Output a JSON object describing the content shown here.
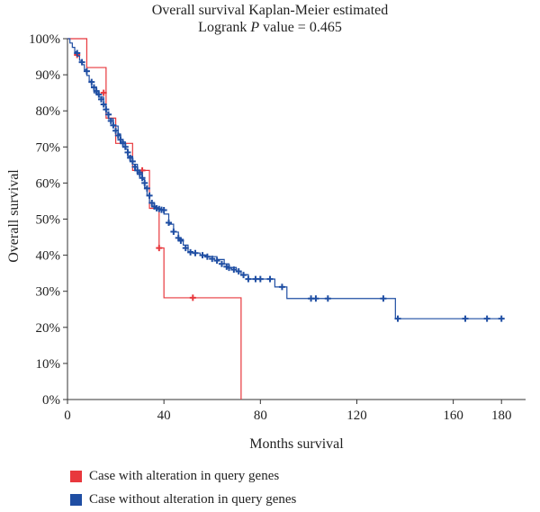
{
  "chart_data": {
    "type": "line",
    "title": "Overall survival Kaplan-Meier estimated",
    "subtitle_prefix": "Logrank ",
    "subtitle_italic": "P",
    "subtitle_suffix": " value = 0.465",
    "xlabel": "Months survival",
    "ylabel": "Overall survival",
    "xlim": [
      0,
      190
    ],
    "ylim": [
      0,
      100
    ],
    "xticks": [
      0,
      40,
      80,
      120,
      160,
      180
    ],
    "xtick_labels": [
      "0",
      "40",
      "80",
      "120",
      "160",
      "180"
    ],
    "yticks": [
      0,
      10,
      20,
      30,
      40,
      50,
      60,
      70,
      80,
      90,
      100
    ],
    "ytick_labels": [
      "0%",
      "10%",
      "20%",
      "30%",
      "40%",
      "50%",
      "60%",
      "70%",
      "80%",
      "90%",
      "100%"
    ],
    "grid": false,
    "legend_position": "bottom-left",
    "series": [
      {
        "name": "Case with alteration in query genes",
        "color": "#e8383d",
        "steps": [
          [
            0,
            100
          ],
          [
            8,
            95.5
          ],
          [
            8,
            92
          ],
          [
            16,
            85
          ],
          [
            16,
            78
          ],
          [
            20,
            71
          ],
          [
            27,
            71
          ],
          [
            27,
            63.5
          ],
          [
            34,
            63.5
          ],
          [
            34,
            53
          ],
          [
            38,
            53
          ],
          [
            38,
            42
          ],
          [
            40,
            42
          ],
          [
            40,
            28.2
          ],
          [
            72,
            28.2
          ],
          [
            72,
            0
          ]
        ],
        "censored": [
          [
            4,
            95.5
          ],
          [
            15,
            85
          ],
          [
            31,
            63.5
          ],
          [
            38,
            42
          ],
          [
            52,
            28.2
          ]
        ]
      },
      {
        "name": "Case without alteration in query genes",
        "color": "#1f4ea3",
        "steps": [
          [
            0,
            100
          ],
          [
            1,
            98.8
          ],
          [
            2,
            97.6
          ],
          [
            3,
            96.4
          ],
          [
            4,
            95.2
          ],
          [
            5,
            94
          ],
          [
            6,
            92.8
          ],
          [
            7,
            91.4
          ],
          [
            8,
            89.8
          ],
          [
            9,
            88.2
          ],
          [
            10,
            86.6
          ],
          [
            11,
            85
          ],
          [
            13,
            83.8
          ],
          [
            15,
            81.6
          ],
          [
            16,
            79.6
          ],
          [
            17,
            77.8
          ],
          [
            19,
            75.8
          ],
          [
            21,
            73.6
          ],
          [
            22,
            71.4
          ],
          [
            24,
            69.4
          ],
          [
            25,
            67.4
          ],
          [
            27,
            65.2
          ],
          [
            29,
            63
          ],
          [
            31,
            61
          ],
          [
            32,
            58.8
          ],
          [
            33,
            56.6
          ],
          [
            34,
            54.6
          ],
          [
            36,
            53.2
          ],
          [
            38,
            52.6
          ],
          [
            40,
            51.4
          ],
          [
            42,
            48.6
          ],
          [
            44,
            46.4
          ],
          [
            46,
            44.4
          ],
          [
            48,
            42.8
          ],
          [
            50,
            41
          ],
          [
            52,
            40.6
          ],
          [
            55,
            40
          ],
          [
            58,
            39.6
          ],
          [
            62,
            38.8
          ],
          [
            65,
            37.6
          ],
          [
            67,
            36.6
          ],
          [
            70,
            35.6
          ],
          [
            72,
            34.6
          ],
          [
            75,
            33.4
          ],
          [
            86,
            33.4
          ],
          [
            86,
            31.2
          ],
          [
            91,
            31.2
          ],
          [
            91,
            28
          ],
          [
            136,
            28
          ],
          [
            136,
            22.4
          ],
          [
            180,
            22.4
          ]
        ],
        "censored": [
          [
            4,
            96
          ],
          [
            6,
            93.5
          ],
          [
            8,
            91
          ],
          [
            10,
            88
          ],
          [
            11,
            86.5
          ],
          [
            12,
            85.5
          ],
          [
            13,
            84.5
          ],
          [
            14,
            83.2
          ],
          [
            15,
            81.8
          ],
          [
            16,
            80.4
          ],
          [
            17,
            79
          ],
          [
            18,
            77.2
          ],
          [
            19,
            76
          ],
          [
            20,
            74.5
          ],
          [
            21,
            73.2
          ],
          [
            22,
            72
          ],
          [
            23,
            71
          ],
          [
            24,
            70
          ],
          [
            25,
            68.5
          ],
          [
            26,
            67
          ],
          [
            27,
            66
          ],
          [
            28,
            64.5
          ],
          [
            29,
            63.5
          ],
          [
            30,
            62.5
          ],
          [
            31,
            61.4
          ],
          [
            32,
            60
          ],
          [
            33,
            58.5
          ],
          [
            34,
            56.5
          ],
          [
            35,
            54.5
          ],
          [
            36,
            53.5
          ],
          [
            37,
            53
          ],
          [
            38,
            52.8
          ],
          [
            39,
            52.6
          ],
          [
            40,
            52.5
          ],
          [
            42,
            49
          ],
          [
            44,
            46.5
          ],
          [
            46,
            44.8
          ],
          [
            47,
            44
          ],
          [
            49,
            42
          ],
          [
            51,
            40.8
          ],
          [
            53,
            40.6
          ],
          [
            56,
            40
          ],
          [
            58,
            39.6
          ],
          [
            60,
            39
          ],
          [
            62,
            38.5
          ],
          [
            64,
            37.6
          ],
          [
            66,
            36.8
          ],
          [
            67,
            36.5
          ],
          [
            69,
            36
          ],
          [
            71,
            35.5
          ],
          [
            73,
            34.5
          ],
          [
            75,
            33.4
          ],
          [
            78,
            33.4
          ],
          [
            80,
            33.4
          ],
          [
            84,
            33.4
          ],
          [
            89,
            31.2
          ],
          [
            101,
            28
          ],
          [
            103,
            28
          ],
          [
            108,
            28
          ],
          [
            131,
            28
          ],
          [
            137,
            22.4
          ],
          [
            165,
            22.4
          ],
          [
            174,
            22.4
          ],
          [
            180,
            22.4
          ]
        ]
      }
    ]
  }
}
